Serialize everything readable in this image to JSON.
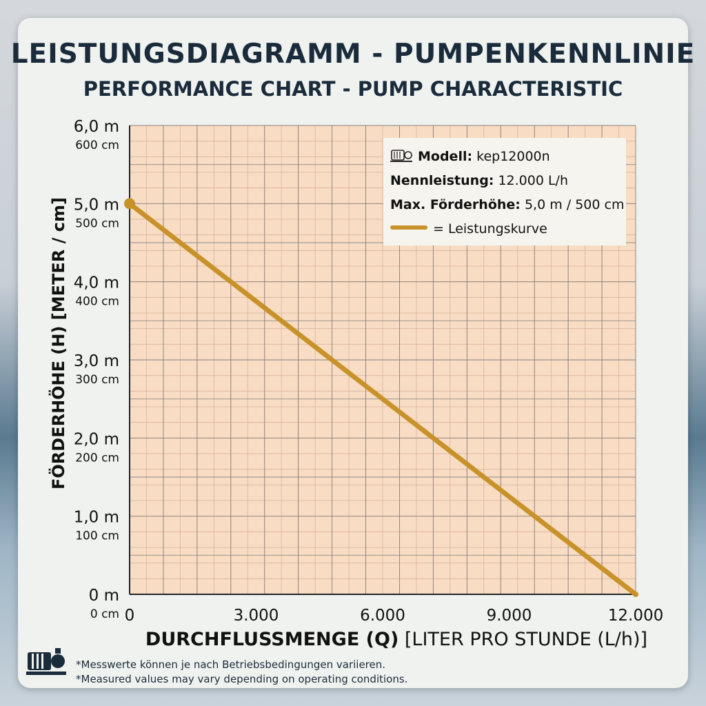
{
  "chart_data": {
    "type": "line",
    "title": "LEISTUNGSDIAGRAMM - PUMPENKENNLINIE",
    "subtitle": "PERFORMANCE CHART - PUMP CHARACTERISTIC",
    "xlabel_bold": "DURCHFLUSSMENGE (Q)",
    "xlabel_rest": "[LITER PRO STUNDE (L/h)]",
    "ylabel": "FÖRDERHÖHE (H) [METER / cm]",
    "xlim": [
      0,
      12000
    ],
    "ylim": [
      0,
      6
    ],
    "x_ticks": [
      {
        "value": 0,
        "label": "0"
      },
      {
        "value": 3000,
        "label": "3.000"
      },
      {
        "value": 6000,
        "label": "6.000"
      },
      {
        "value": 9000,
        "label": "9.000"
      },
      {
        "value": 12000,
        "label": "12.000"
      }
    ],
    "y_ticks": [
      {
        "value": 0,
        "label": "0 m",
        "sub": "0 cm"
      },
      {
        "value": 1,
        "label": "1,0 m",
        "sub": "100 cm"
      },
      {
        "value": 2,
        "label": "2,0 m",
        "sub": "200 cm"
      },
      {
        "value": 3,
        "label": "3,0 m",
        "sub": "300 cm"
      },
      {
        "value": 4,
        "label": "4,0 m",
        "sub": "400 cm"
      },
      {
        "value": 5,
        "label": "5,0 m",
        "sub": "500 cm"
      },
      {
        "value": 6,
        "label": "6,0 m",
        "sub": "600 cm"
      }
    ],
    "series": [
      {
        "name": "Leistungskurve",
        "color": "#c8922a",
        "x": [
          0,
          12000
        ],
        "y": [
          5.0,
          0.0
        ]
      }
    ],
    "grid": true,
    "legend_position": "top-right"
  },
  "legend": {
    "model_label": "Modell:",
    "model_value": "kep12000n",
    "rated_label": "Nennleistung:",
    "rated_value": "12.000 L/h",
    "maxhead_label": "Max. Förderhöhe:",
    "maxhead_value": "5,0 m / 500 cm",
    "curve_label": "= Leistungskurve",
    "icon": "pump-icon"
  },
  "footer": {
    "line1": "*Messwerte können je nach Betriebsbedingungen variieren.",
    "line2": "*Measured values may vary depending on operating conditions.",
    "icon": "pump-icon"
  },
  "colors": {
    "plot_bg": "#f8dcc4",
    "grid_major": "#6e6e6e",
    "grid_minor": "#d9b49a",
    "curve": "#c8922a"
  }
}
